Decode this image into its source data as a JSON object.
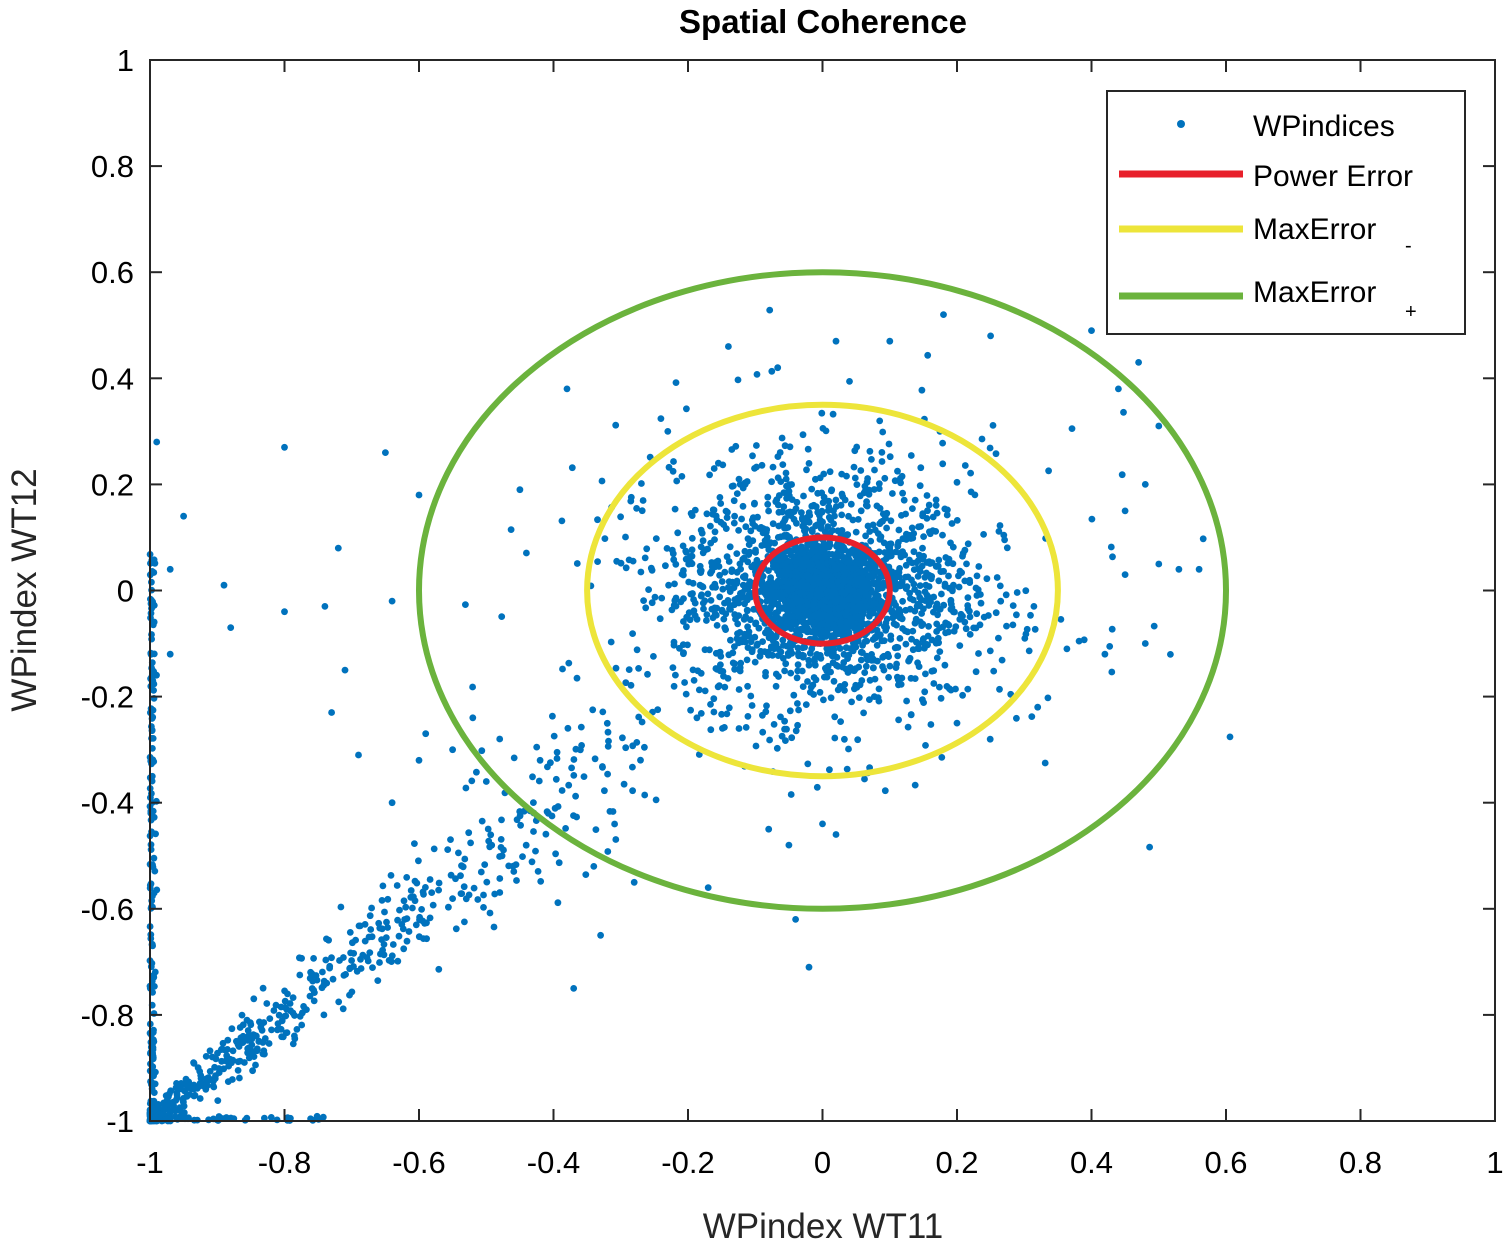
{
  "chart_data": {
    "type": "scatter",
    "title": "Spatial Coherence",
    "xlabel": "WPindex WT11",
    "ylabel": "WPindex WT12",
    "xlim": [
      -1,
      1
    ],
    "ylim": [
      -1,
      1
    ],
    "xticks": [
      -1,
      -0.8,
      -0.6,
      -0.4,
      -0.2,
      0,
      0.2,
      0.4,
      0.6,
      0.8,
      1
    ],
    "yticks": [
      -1,
      -0.8,
      -0.6,
      -0.4,
      -0.2,
      0,
      0.2,
      0.4,
      0.6,
      0.8,
      1
    ],
    "xtick_labels": [
      "-1",
      "-0.8",
      "-0.6",
      "-0.4",
      "-0.2",
      "0",
      "0.2",
      "0.4",
      "0.6",
      "0.8",
      "1"
    ],
    "ytick_labels": [
      "-1",
      "-0.8",
      "-0.6",
      "-0.4",
      "-0.2",
      "0",
      "0.2",
      "0.4",
      "0.6",
      "0.8",
      "1"
    ],
    "grid": false,
    "legend_position": "top-right",
    "series": [
      {
        "name": "WPindices",
        "type": "scatter",
        "color": "#0072bd",
        "points": [
          [
            0.02,
            0.47
          ],
          [
            0.18,
            0.52
          ],
          [
            0.25,
            0.48
          ],
          [
            -0.14,
            0.46
          ],
          [
            0.1,
            0.47
          ],
          [
            0.4,
            0.49
          ],
          [
            0.47,
            0.43
          ],
          [
            -0.38,
            0.38
          ],
          [
            -0.99,
            0.28
          ],
          [
            -0.8,
            0.27
          ],
          [
            -0.65,
            0.26
          ],
          [
            -0.6,
            0.18
          ],
          [
            -0.45,
            0.19
          ],
          [
            -0.23,
            0.3
          ],
          [
            0.44,
            0.38
          ],
          [
            0.5,
            0.31
          ],
          [
            -0.95,
            0.14
          ],
          [
            -0.72,
            0.08
          ],
          [
            -0.97,
            -0.12
          ],
          [
            -0.88,
            -0.07
          ],
          [
            -0.8,
            -0.04
          ],
          [
            -0.64,
            -0.02
          ],
          [
            -0.74,
            -0.03
          ],
          [
            -0.89,
            0.01
          ],
          [
            -0.97,
            0.04
          ],
          [
            -0.71,
            -0.15
          ],
          [
            -0.59,
            -0.27
          ],
          [
            -0.73,
            -0.23
          ],
          [
            -0.69,
            -0.31
          ],
          [
            -0.64,
            -0.4
          ],
          [
            -0.6,
            -0.32
          ],
          [
            0.45,
            0.03
          ],
          [
            0.5,
            0.05
          ],
          [
            0.53,
            0.04
          ],
          [
            0.56,
            0.04
          ],
          [
            0.48,
            -0.1
          ],
          [
            0.42,
            -0.12
          ],
          [
            0.45,
            0.15
          ],
          [
            0.48,
            0.2
          ],
          [
            0.2,
            -0.25
          ],
          [
            0.32,
            -0.22
          ],
          [
            -0.37,
            -0.75
          ],
          [
            -0.33,
            -0.65
          ],
          [
            -0.17,
            -0.56
          ],
          [
            -0.02,
            -0.71
          ],
          [
            -0.04,
            -0.62
          ],
          [
            -0.08,
            -0.45
          ],
          [
            -0.05,
            -0.48
          ],
          [
            0.0,
            -0.44
          ],
          [
            0.02,
            -0.46
          ],
          [
            -0.34,
            -0.52
          ],
          [
            -0.28,
            -0.55
          ],
          [
            -0.52,
            -0.24
          ],
          [
            -0.48,
            -0.28
          ],
          [
            -0.42,
            -0.32
          ],
          [
            -0.5,
            -0.36
          ],
          [
            -0.55,
            -0.3
          ]
        ]
      },
      {
        "name": "Power Error",
        "type": "circle",
        "color": "#e8202a",
        "radius": 0.1
      },
      {
        "name": "MaxError-",
        "type": "circle",
        "color": "#ede53a",
        "radius": 0.35
      },
      {
        "name": "MaxError+",
        "type": "circle",
        "color": "#6bb33d",
        "radius": 0.6
      }
    ]
  },
  "legend": {
    "items": [
      {
        "label": "WPindices",
        "sub": ""
      },
      {
        "label": "Power Error",
        "sub": ""
      },
      {
        "label": "MaxError",
        "sub": "-"
      },
      {
        "label": "MaxError",
        "sub": "+"
      }
    ]
  }
}
